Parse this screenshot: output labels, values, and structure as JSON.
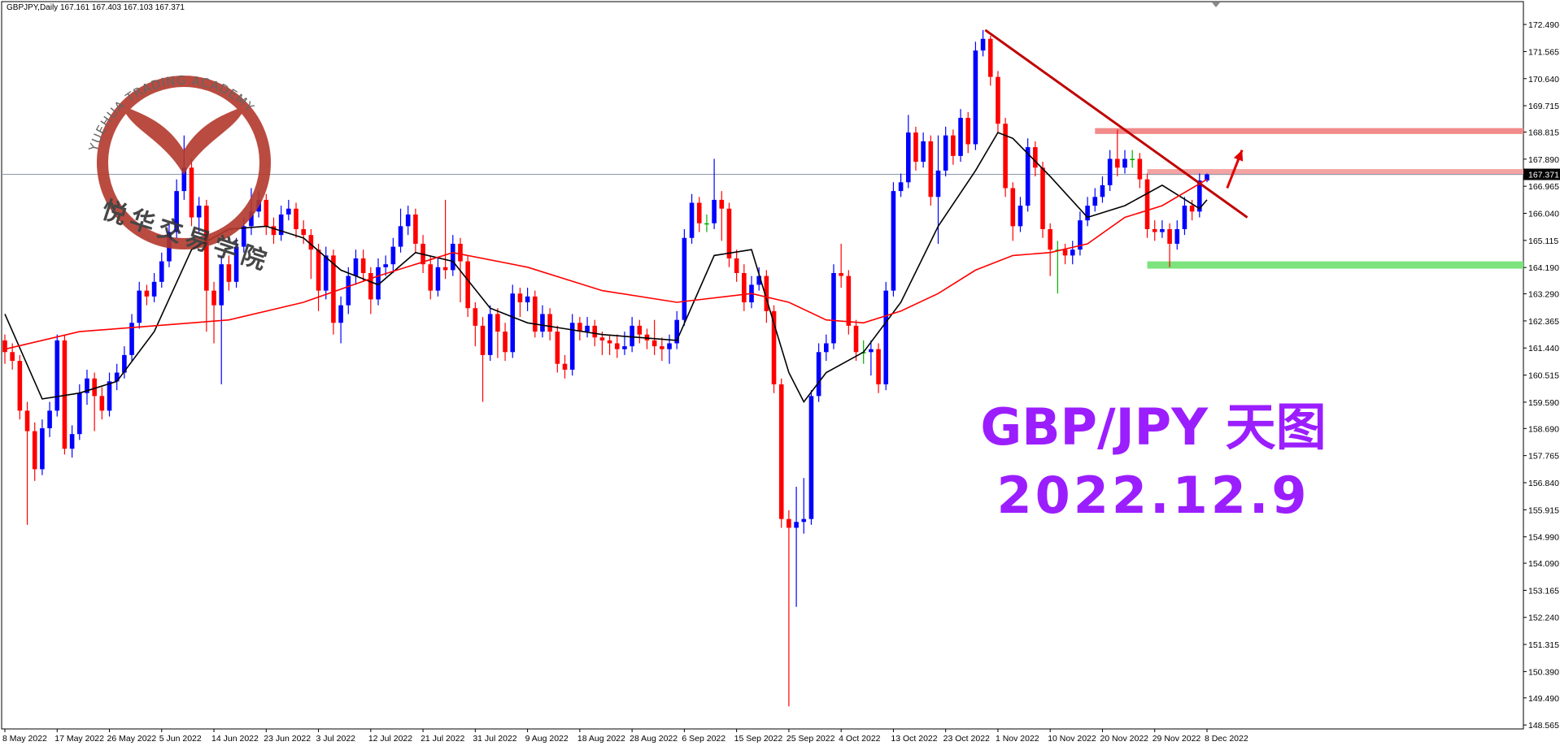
{
  "chart_data": {
    "type": "candlestick",
    "title": "GBPJPY,Daily  167.161 167.403 167.103 167.371",
    "annotations": [
      "GBP/JPY 天图",
      "2022.12.9"
    ],
    "watermark": {
      "text": "YUEHUA TRADING ACADEMY",
      "text_cn": "悦华交易学院"
    },
    "categories": [
      "8 May 2022",
      null,
      null,
      null,
      null,
      null,
      null,
      "17 May 2022",
      null,
      null,
      null,
      null,
      null,
      null,
      "26 May 2022",
      null,
      null,
      null,
      null,
      null,
      null,
      "5 Jun 2022",
      null,
      null,
      null,
      null,
      null,
      null,
      "14 Jun 2022",
      null,
      null,
      null,
      null,
      null,
      null,
      "23 Jun 2022",
      null,
      null,
      null,
      null,
      null,
      null,
      "3 Jul 2022",
      null,
      null,
      null,
      null,
      null,
      null,
      "12 Jul 2022",
      null,
      null,
      null,
      null,
      null,
      null,
      "21 Jul 2022",
      null,
      null,
      null,
      null,
      null,
      null,
      "31 Jul 2022",
      null,
      null,
      null,
      null,
      null,
      null,
      "9 Aug 2022",
      null,
      null,
      null,
      null,
      null,
      null,
      "18 Aug 2022",
      null,
      null,
      null,
      null,
      null,
      null,
      "28 Aug 2022",
      null,
      null,
      null,
      null,
      null,
      null,
      "6 Sep 2022",
      null,
      null,
      null,
      null,
      null,
      null,
      "15 Sep 2022",
      null,
      null,
      null,
      null,
      null,
      null,
      "25 Sep 2022",
      null,
      null,
      null,
      null,
      null,
      null,
      "4 Oct 2022",
      null,
      null,
      null,
      null,
      null,
      null,
      "13 Oct 2022",
      null,
      null,
      null,
      null,
      null,
      null,
      "23 Oct 2022",
      null,
      null,
      null,
      null,
      null,
      null,
      "1 Nov 2022",
      null,
      null,
      null,
      null,
      null,
      null,
      "10 Nov 2022",
      null,
      null,
      null,
      null,
      null,
      null,
      "20 Nov 2022",
      null,
      null,
      null,
      null,
      null,
      null,
      "29 Nov 2022",
      null,
      null,
      null,
      null,
      null,
      null,
      "8 Dec 2022"
    ],
    "ohlc": [
      [
        161.7,
        161.9,
        160.9,
        161.3
      ],
      [
        161.3,
        161.6,
        160.7,
        161.0
      ],
      [
        161.0,
        161.2,
        159.0,
        159.3
      ],
      [
        159.3,
        159.6,
        155.4,
        158.6
      ],
      [
        158.6,
        158.9,
        156.9,
        157.3
      ],
      [
        157.3,
        159.0,
        157.1,
        158.7
      ],
      [
        158.7,
        159.6,
        158.4,
        159.3
      ],
      [
        159.3,
        161.9,
        159.1,
        161.7
      ],
      [
        161.7,
        161.9,
        157.8,
        158.0
      ],
      [
        158.0,
        158.8,
        157.7,
        158.5
      ],
      [
        158.5,
        160.2,
        158.3,
        159.9
      ],
      [
        159.9,
        160.7,
        159.5,
        160.4
      ],
      [
        160.4,
        160.6,
        158.6,
        159.8
      ],
      [
        159.8,
        160.1,
        159.0,
        159.3
      ],
      [
        159.3,
        160.6,
        159.1,
        160.3
      ],
      [
        160.3,
        160.9,
        160.0,
        160.6
      ],
      [
        160.6,
        161.5,
        160.4,
        161.2
      ],
      [
        161.2,
        162.6,
        161.0,
        162.3
      ],
      [
        162.3,
        163.7,
        162.1,
        163.4
      ],
      [
        163.4,
        163.6,
        162.9,
        163.2
      ],
      [
        163.2,
        164.0,
        163.0,
        163.7
      ],
      [
        163.7,
        164.7,
        163.5,
        164.4
      ],
      [
        164.4,
        165.7,
        164.2,
        165.4
      ],
      [
        165.4,
        167.2,
        165.2,
        166.8
      ],
      [
        166.8,
        168.7,
        166.5,
        167.6
      ],
      [
        167.6,
        167.9,
        165.6,
        165.9
      ],
      [
        165.9,
        166.6,
        165.4,
        166.3
      ],
      [
        166.3,
        166.5,
        162.0,
        163.4
      ],
      [
        163.4,
        163.7,
        161.6,
        162.9
      ],
      [
        162.9,
        164.6,
        160.2,
        164.3
      ],
      [
        164.3,
        164.6,
        163.4,
        163.7
      ],
      [
        163.7,
        165.2,
        163.5,
        164.9
      ],
      [
        164.9,
        165.9,
        164.7,
        165.6
      ],
      [
        165.6,
        166.9,
        165.3,
        166.1
      ],
      [
        166.1,
        166.8,
        165.9,
        166.5
      ],
      [
        166.5,
        166.7,
        165.3,
        165.6
      ],
      [
        165.6,
        165.9,
        165.0,
        165.3
      ],
      [
        165.3,
        166.3,
        165.1,
        166.0
      ],
      [
        166.0,
        166.5,
        165.8,
        166.2
      ],
      [
        166.2,
        166.4,
        165.2,
        165.5
      ],
      [
        165.5,
        165.8,
        165.0,
        165.3
      ],
      [
        165.3,
        165.5,
        163.8,
        164.8
      ],
      [
        164.8,
        165.0,
        162.7,
        163.4
      ],
      [
        163.4,
        164.9,
        163.1,
        164.6
      ],
      [
        164.6,
        164.8,
        161.9,
        162.3
      ],
      [
        162.3,
        163.2,
        161.6,
        162.9
      ],
      [
        162.9,
        164.2,
        162.6,
        163.9
      ],
      [
        163.9,
        164.8,
        163.6,
        164.5
      ],
      [
        164.5,
        164.8,
        163.7,
        164.0
      ],
      [
        164.0,
        164.2,
        162.6,
        163.1
      ],
      [
        163.1,
        164.5,
        162.9,
        164.2
      ],
      [
        164.2,
        164.6,
        163.9,
        164.3
      ],
      [
        164.3,
        165.2,
        164.0,
        164.9
      ],
      [
        164.9,
        166.2,
        164.7,
        165.6
      ],
      [
        165.6,
        166.3,
        165.3,
        166.0
      ],
      [
        166.0,
        166.2,
        164.7,
        165.0
      ],
      [
        165.0,
        165.3,
        164.0,
        164.3
      ],
      [
        164.3,
        164.6,
        163.1,
        163.4
      ],
      [
        163.4,
        164.5,
        163.2,
        164.2
      ],
      [
        164.2,
        166.5,
        163.8,
        164.1
      ],
      [
        164.1,
        165.3,
        163.9,
        165.0
      ],
      [
        165.0,
        165.2,
        163.0,
        164.4
      ],
      [
        164.4,
        164.6,
        162.5,
        162.8
      ],
      [
        162.8,
        163.0,
        161.5,
        162.2
      ],
      [
        162.2,
        162.5,
        159.6,
        161.2
      ],
      [
        161.2,
        162.9,
        161.0,
        162.6
      ],
      [
        162.6,
        162.8,
        161.1,
        162.0
      ],
      [
        162.0,
        162.3,
        161.0,
        161.3
      ],
      [
        161.3,
        163.6,
        161.1,
        163.3
      ],
      [
        163.3,
        163.5,
        162.5,
        163.0
      ],
      [
        163.0,
        163.5,
        162.7,
        163.2
      ],
      [
        163.2,
        163.4,
        161.8,
        162.0
      ],
      [
        162.0,
        162.9,
        161.8,
        162.6
      ],
      [
        162.6,
        162.8,
        161.7,
        162.0
      ],
      [
        162.0,
        162.2,
        160.6,
        160.9
      ],
      [
        160.9,
        161.2,
        160.4,
        160.7
      ],
      [
        160.7,
        162.6,
        160.5,
        162.3
      ],
      [
        162.3,
        162.5,
        161.7,
        162.0
      ],
      [
        162.0,
        162.5,
        161.8,
        162.2
      ],
      [
        162.2,
        162.4,
        161.5,
        161.8
      ],
      [
        161.8,
        162.0,
        161.2,
        161.7
      ],
      [
        161.7,
        161.9,
        161.2,
        161.6
      ],
      [
        161.6,
        161.9,
        161.1,
        161.4
      ],
      [
        161.4,
        162.0,
        161.2,
        161.5
      ],
      [
        161.5,
        162.5,
        161.3,
        162.2
      ],
      [
        162.2,
        162.4,
        161.6,
        161.9
      ],
      [
        161.9,
        162.1,
        161.4,
        161.7
      ],
      [
        161.7,
        162.4,
        161.2,
        161.5
      ],
      [
        161.5,
        161.8,
        161.0,
        161.4
      ],
      [
        161.4,
        161.9,
        160.9,
        161.6
      ],
      [
        161.6,
        162.7,
        161.4,
        162.4
      ],
      [
        162.4,
        165.5,
        162.2,
        165.2
      ],
      [
        165.2,
        166.7,
        165.0,
        166.4
      ],
      [
        166.4,
        166.6,
        165.4,
        165.7
      ],
      [
        165.7,
        166.0,
        165.4,
        165.7
      ],
      [
        165.7,
        167.9,
        165.5,
        166.5
      ],
      [
        166.5,
        166.8,
        165.1,
        166.2
      ],
      [
        166.2,
        166.4,
        164.2,
        164.5
      ],
      [
        164.5,
        164.8,
        163.7,
        164.0
      ],
      [
        164.0,
        164.3,
        162.7,
        163.0
      ],
      [
        163.0,
        163.9,
        162.8,
        163.6
      ],
      [
        163.6,
        164.2,
        163.4,
        163.9
      ],
      [
        163.9,
        164.1,
        162.3,
        162.7
      ],
      [
        162.7,
        162.9,
        159.9,
        160.2
      ],
      [
        160.2,
        160.4,
        155.3,
        155.6
      ],
      [
        155.6,
        155.9,
        149.2,
        155.3
      ],
      [
        155.3,
        156.7,
        152.6,
        155.5
      ],
      [
        155.5,
        157.0,
        155.1,
        155.6
      ],
      [
        155.6,
        160.0,
        155.4,
        159.8
      ],
      [
        159.8,
        161.6,
        159.6,
        161.3
      ],
      [
        161.3,
        161.9,
        161.0,
        161.6
      ],
      [
        161.6,
        164.3,
        161.4,
        164.0
      ],
      [
        164.0,
        165.0,
        163.5,
        163.9
      ],
      [
        163.9,
        164.1,
        161.9,
        162.2
      ],
      [
        162.2,
        162.4,
        161.0,
        161.3
      ],
      [
        161.3,
        161.7,
        160.9,
        161.3
      ],
      [
        161.3,
        161.7,
        160.5,
        161.4
      ],
      [
        161.4,
        161.6,
        159.9,
        160.2
      ],
      [
        160.2,
        163.7,
        160.0,
        163.4
      ],
      [
        163.4,
        167.1,
        163.2,
        166.8
      ],
      [
        166.8,
        167.4,
        166.6,
        167.1
      ],
      [
        167.1,
        169.4,
        166.9,
        168.8
      ],
      [
        168.8,
        169.0,
        167.5,
        167.8
      ],
      [
        167.8,
        168.8,
        167.6,
        168.5
      ],
      [
        168.5,
        168.7,
        166.3,
        166.6
      ],
      [
        166.6,
        168.7,
        165.0,
        167.5
      ],
      [
        167.5,
        169.0,
        167.3,
        168.7
      ],
      [
        168.7,
        168.9,
        167.7,
        168.0
      ],
      [
        168.0,
        169.6,
        167.8,
        169.3
      ],
      [
        169.3,
        169.5,
        168.1,
        168.4
      ],
      [
        168.4,
        171.9,
        168.2,
        171.6
      ],
      [
        171.6,
        172.3,
        171.4,
        172.0
      ],
      [
        172.0,
        172.1,
        170.4,
        170.7
      ],
      [
        170.7,
        170.9,
        168.8,
        169.1
      ],
      [
        169.1,
        169.3,
        166.6,
        166.9
      ],
      [
        166.9,
        167.1,
        165.1,
        165.6
      ],
      [
        165.6,
        166.6,
        165.4,
        166.3
      ],
      [
        166.3,
        168.6,
        166.1,
        168.3
      ],
      [
        168.3,
        168.5,
        167.3,
        167.6
      ],
      [
        167.6,
        167.8,
        165.2,
        165.5
      ],
      [
        165.5,
        165.7,
        163.9,
        164.8
      ],
      [
        164.8,
        165.1,
        163.3,
        164.8
      ],
      [
        164.8,
        165.0,
        164.3,
        164.6
      ],
      [
        164.6,
        165.1,
        164.3,
        164.8
      ],
      [
        164.8,
        166.1,
        164.6,
        165.8
      ],
      [
        165.8,
        166.6,
        165.6,
        166.3
      ],
      [
        166.3,
        166.9,
        166.1,
        166.6
      ],
      [
        166.6,
        167.3,
        166.4,
        167.0
      ],
      [
        167.0,
        168.2,
        166.8,
        167.9
      ],
      [
        167.9,
        168.9,
        167.3,
        167.6
      ],
      [
        167.6,
        168.2,
        167.4,
        167.9
      ],
      [
        167.9,
        168.2,
        167.6,
        167.9
      ],
      [
        167.9,
        168.1,
        166.9,
        167.2
      ],
      [
        167.2,
        167.4,
        165.2,
        165.5
      ],
      [
        165.5,
        165.8,
        165.1,
        165.4
      ],
      [
        165.4,
        165.8,
        165.2,
        165.5
      ],
      [
        165.5,
        165.7,
        164.2,
        165.0
      ],
      [
        165.0,
        165.8,
        164.8,
        165.5
      ],
      [
        165.5,
        166.6,
        165.3,
        166.3
      ],
      [
        166.3,
        166.5,
        165.8,
        166.1
      ],
      [
        166.1,
        167.4,
        165.9,
        167.161
      ],
      [
        167.161,
        167.403,
        167.103,
        167.371
      ]
    ],
    "up_color": "#0000ff",
    "down_color": "#ff0000",
    "series": [
      {
        "color": "#000000",
        "x": [
          0,
          5,
          10,
          15,
          20,
          25,
          30,
          35,
          40,
          45,
          50,
          55,
          60,
          65,
          70,
          75,
          80,
          85,
          90,
          95,
          100,
          105,
          107,
          110,
          115,
          120,
          125,
          130,
          133,
          135,
          140,
          145,
          150,
          155,
          160,
          161
        ],
        "values": [
          162.6,
          159.7,
          159.9,
          160.3,
          162.0,
          164.8,
          165.5,
          165.6,
          165.2,
          164.1,
          163.6,
          164.7,
          164.4,
          162.8,
          162.3,
          162.1,
          161.9,
          161.8,
          161.7,
          164.6,
          164.8,
          160.6,
          159.6,
          160.6,
          161.3,
          163.0,
          165.6,
          167.5,
          168.8,
          168.6,
          167.3,
          165.9,
          166.3,
          167.0,
          166.2,
          166.5
        ]
      },
      {
        "color": "#ff0000",
        "x": [
          0,
          10,
          20,
          30,
          40,
          50,
          60,
          70,
          80,
          90,
          100,
          105,
          110,
          115,
          120,
          125,
          130,
          135,
          140,
          145,
          150,
          155,
          161
        ],
        "values": [
          161.4,
          162.0,
          162.2,
          162.4,
          163.0,
          163.9,
          164.7,
          164.2,
          163.4,
          163.0,
          163.3,
          163.0,
          162.4,
          162.3,
          162.7,
          163.3,
          164.1,
          164.6,
          164.7,
          165.0,
          165.9,
          166.3,
          167.2
        ]
      }
    ],
    "zones": [
      {
        "low": 168.75,
        "high": 168.95,
        "from": 146,
        "color": "#f28b8b"
      },
      {
        "low": 167.35,
        "high": 167.55,
        "from": 153,
        "color": "#f4a3a3"
      },
      {
        "low": 164.15,
        "high": 164.4,
        "from": 153,
        "color": "#7de37d"
      }
    ],
    "trendline": {
      "x": [
        131.3,
        166.4
      ],
      "y": [
        172.3,
        165.9
      ],
      "color": "#c00000"
    },
    "arrow": {
      "x": [
        163.7,
        165.7
      ],
      "y": [
        166.9,
        168.2
      ],
      "color": "#e00000"
    },
    "price_line": {
      "value": 167.371,
      "label": "167.371",
      "color": "#8899aa"
    },
    "ylim": [
      148.43,
      173.27
    ],
    "yticks": [
      {
        "value": 172.49,
        "label": "172.490"
      },
      {
        "value": 171.565,
        "label": "171.565"
      },
      {
        "value": 170.64,
        "label": "170.640"
      },
      {
        "value": 169.715,
        "label": "169.715"
      },
      {
        "value": 168.815,
        "label": "168.815"
      },
      {
        "value": 167.89,
        "label": "167.890"
      },
      {
        "value": 166.965,
        "label": "166.965"
      },
      {
        "value": 166.04,
        "label": "166.040"
      },
      {
        "value": 165.115,
        "label": "165.115"
      },
      {
        "value": 164.19,
        "label": "164.190"
      },
      {
        "value": 163.29,
        "label": "163.290"
      },
      {
        "value": 162.365,
        "label": "162.365"
      },
      {
        "value": 161.44,
        "label": "161.440"
      },
      {
        "value": 160.515,
        "label": "160.515"
      },
      {
        "value": 159.59,
        "label": "159.590"
      },
      {
        "value": 158.69,
        "label": "158.690"
      },
      {
        "value": 157.765,
        "label": "157.765"
      },
      {
        "value": 156.84,
        "label": "156.840"
      },
      {
        "value": 155.915,
        "label": "155.915"
      },
      {
        "value": 154.99,
        "label": "154.990"
      },
      {
        "value": 154.09,
        "label": "154.090"
      },
      {
        "value": 153.165,
        "label": "153.165"
      },
      {
        "value": 152.24,
        "label": "152.240"
      },
      {
        "value": 151.315,
        "label": "151.315"
      },
      {
        "value": 150.39,
        "label": "150.390"
      },
      {
        "value": 149.49,
        "label": "149.490"
      },
      {
        "value": 148.565,
        "label": "148.565"
      }
    ],
    "grid": false
  }
}
